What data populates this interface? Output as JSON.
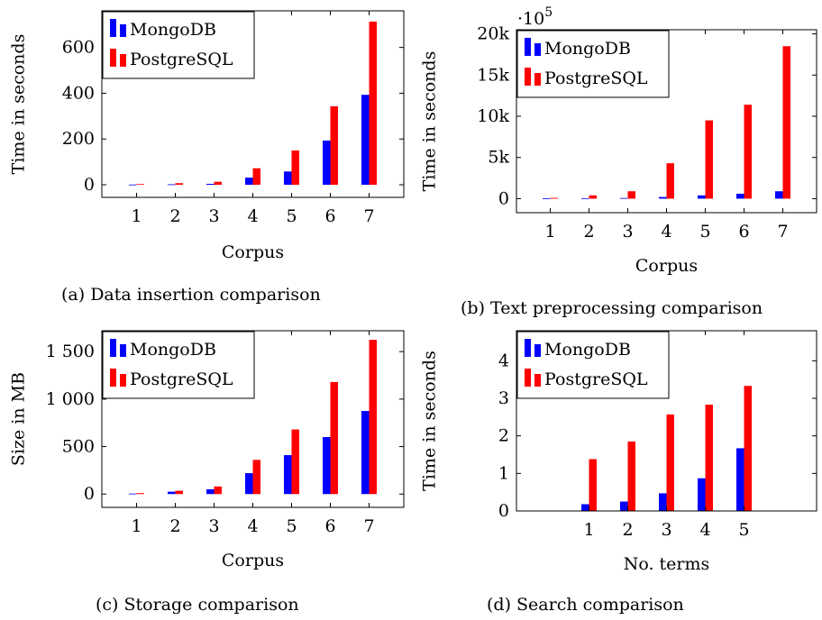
{
  "colors": {
    "mongo": "#0000ff",
    "postgres": "#ff0000",
    "axis": "#000000",
    "legend_bg": "#ffffff"
  },
  "chart_data": [
    {
      "type": "bar",
      "panel": "a",
      "caption": "(a) Data insertion comparison",
      "xlabel": "Corpus",
      "ylabel": "Time in seconds",
      "categories": [
        "1",
        "2",
        "3",
        "4",
        "5",
        "6",
        "7"
      ],
      "series": [
        {
          "name": "MongoDB",
          "color": "mongo",
          "values": [
            1,
            2,
            4,
            31,
            58,
            193,
            393
          ]
        },
        {
          "name": "PostgreSQL",
          "color": "postgres",
          "values": [
            3,
            7,
            13,
            72,
            150,
            343,
            713
          ]
        }
      ],
      "ylim": [
        -55,
        760
      ],
      "yticks": [
        0,
        200,
        400,
        600
      ],
      "ytick_labels": [
        "0",
        "200",
        "400",
        "600"
      ],
      "scale_label": "",
      "legend_position": "top-left",
      "grid": false
    },
    {
      "type": "bar",
      "panel": "b",
      "caption": "(b) Text preprocessing comparison",
      "xlabel": "Corpus",
      "ylabel": "Time in seconds",
      "categories": [
        "1",
        "2",
        "3",
        "4",
        "5",
        "6",
        "7"
      ],
      "series": [
        {
          "name": "MongoDB",
          "color": "mongo",
          "values": [
            50,
            60,
            80,
            200,
            400,
            600,
            900
          ]
        },
        {
          "name": "PostgreSQL",
          "color": "postgres",
          "values": [
            100,
            400,
            900,
            4300,
            9500,
            11400,
            18500
          ]
        }
      ],
      "ylim": [
        -1700,
        20500
      ],
      "yticks": [
        0,
        5000,
        10000,
        15000,
        20000
      ],
      "ytick_labels": [
        "0",
        "5k",
        "10k",
        "15k",
        "20k"
      ],
      "scale_label": "·10",
      "scale_exponent": "5",
      "legend_position": "top-left",
      "grid": false
    },
    {
      "type": "bar",
      "panel": "c",
      "caption": "(c) Storage comparison",
      "xlabel": "Corpus",
      "ylabel": "Size in MB",
      "categories": [
        "1",
        "2",
        "3",
        "4",
        "5",
        "6",
        "7"
      ],
      "series": [
        {
          "name": "MongoDB",
          "color": "mongo",
          "values": [
            5,
            25,
            50,
            220,
            410,
            600,
            875
          ]
        },
        {
          "name": "PostgreSQL",
          "color": "postgres",
          "values": [
            10,
            35,
            80,
            360,
            680,
            1180,
            1625
          ]
        }
      ],
      "ylim": [
        -140,
        1720
      ],
      "yticks": [
        0,
        500,
        1000,
        1500
      ],
      "ytick_labels": [
        "0",
        "500",
        "1 000",
        "1 500"
      ],
      "scale_label": "",
      "legend_position": "top-left",
      "grid": false
    },
    {
      "type": "bar",
      "panel": "d",
      "caption": "(d) Search comparison",
      "xlabel": "No. terms",
      "ylabel": "Time in seconds",
      "categories": [
        "1",
        "2",
        "3",
        "4",
        "5"
      ],
      "series": [
        {
          "name": "MongoDB",
          "color": "mongo",
          "values": [
            0.18,
            0.25,
            0.47,
            0.87,
            1.67
          ]
        },
        {
          "name": "PostgreSQL",
          "color": "postgres",
          "values": [
            1.38,
            1.85,
            2.57,
            2.83,
            3.33
          ]
        }
      ],
      "ylim": [
        0,
        4.8
      ],
      "yticks": [
        0,
        1,
        2,
        3,
        4
      ],
      "ytick_labels": [
        "0",
        "1",
        "2",
        "3",
        "4"
      ],
      "scale_label": "",
      "legend_position": "top-left",
      "grid": false
    }
  ]
}
